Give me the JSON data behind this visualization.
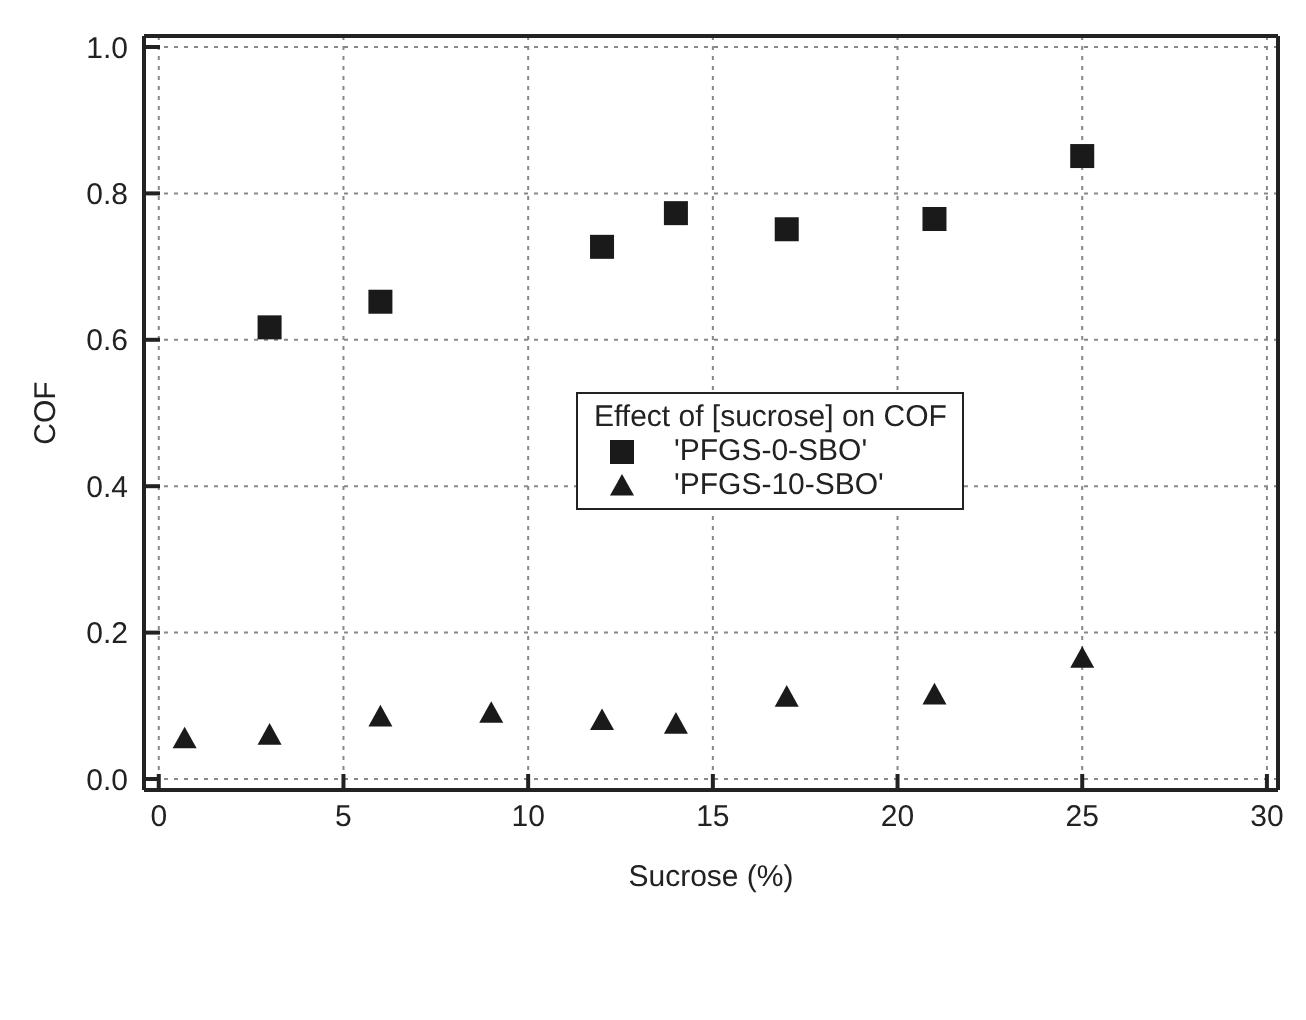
{
  "chart_data": {
    "type": "scatter",
    "xlabel": "Sucrose (%)",
    "ylabel": "COF",
    "legend_title": "Effect of [sucrose] on COF",
    "legend": "center",
    "grid": true,
    "xlim": [
      -0.4,
      30.3
    ],
    "xticks": [
      0,
      5,
      10,
      15,
      20,
      25,
      30
    ],
    "ylim": [
      -0.015,
      1.015
    ],
    "yticks": [
      {
        "value": 0,
        "label": "0.0"
      },
      {
        "value": 0.2,
        "label": "0.2"
      },
      {
        "value": 0.4,
        "label": "0.4"
      },
      {
        "value": 0.6,
        "label": "0.6"
      },
      {
        "value": 0.8,
        "label": "0.8"
      },
      {
        "value": 1,
        "label": "1.0"
      }
    ],
    "series": [
      {
        "name": "'PFGS-0-SBO'",
        "color": "#1a1a1a",
        "marker": "square",
        "x": [
          3,
          6,
          12,
          14,
          17,
          21,
          25
        ],
        "values": [
          0.617,
          0.652,
          0.727,
          0.773,
          0.751,
          0.765,
          0.851
        ]
      },
      {
        "name": "'PFGS-10-SBO'",
        "color": "#1a1a1a",
        "marker": "triangle",
        "x": [
          0.7,
          3,
          6,
          9,
          12,
          14,
          17,
          21,
          25
        ],
        "values": [
          0.055,
          0.06,
          0.085,
          0.09,
          0.08,
          0.075,
          0.112,
          0.115,
          0.165
        ]
      }
    ]
  }
}
